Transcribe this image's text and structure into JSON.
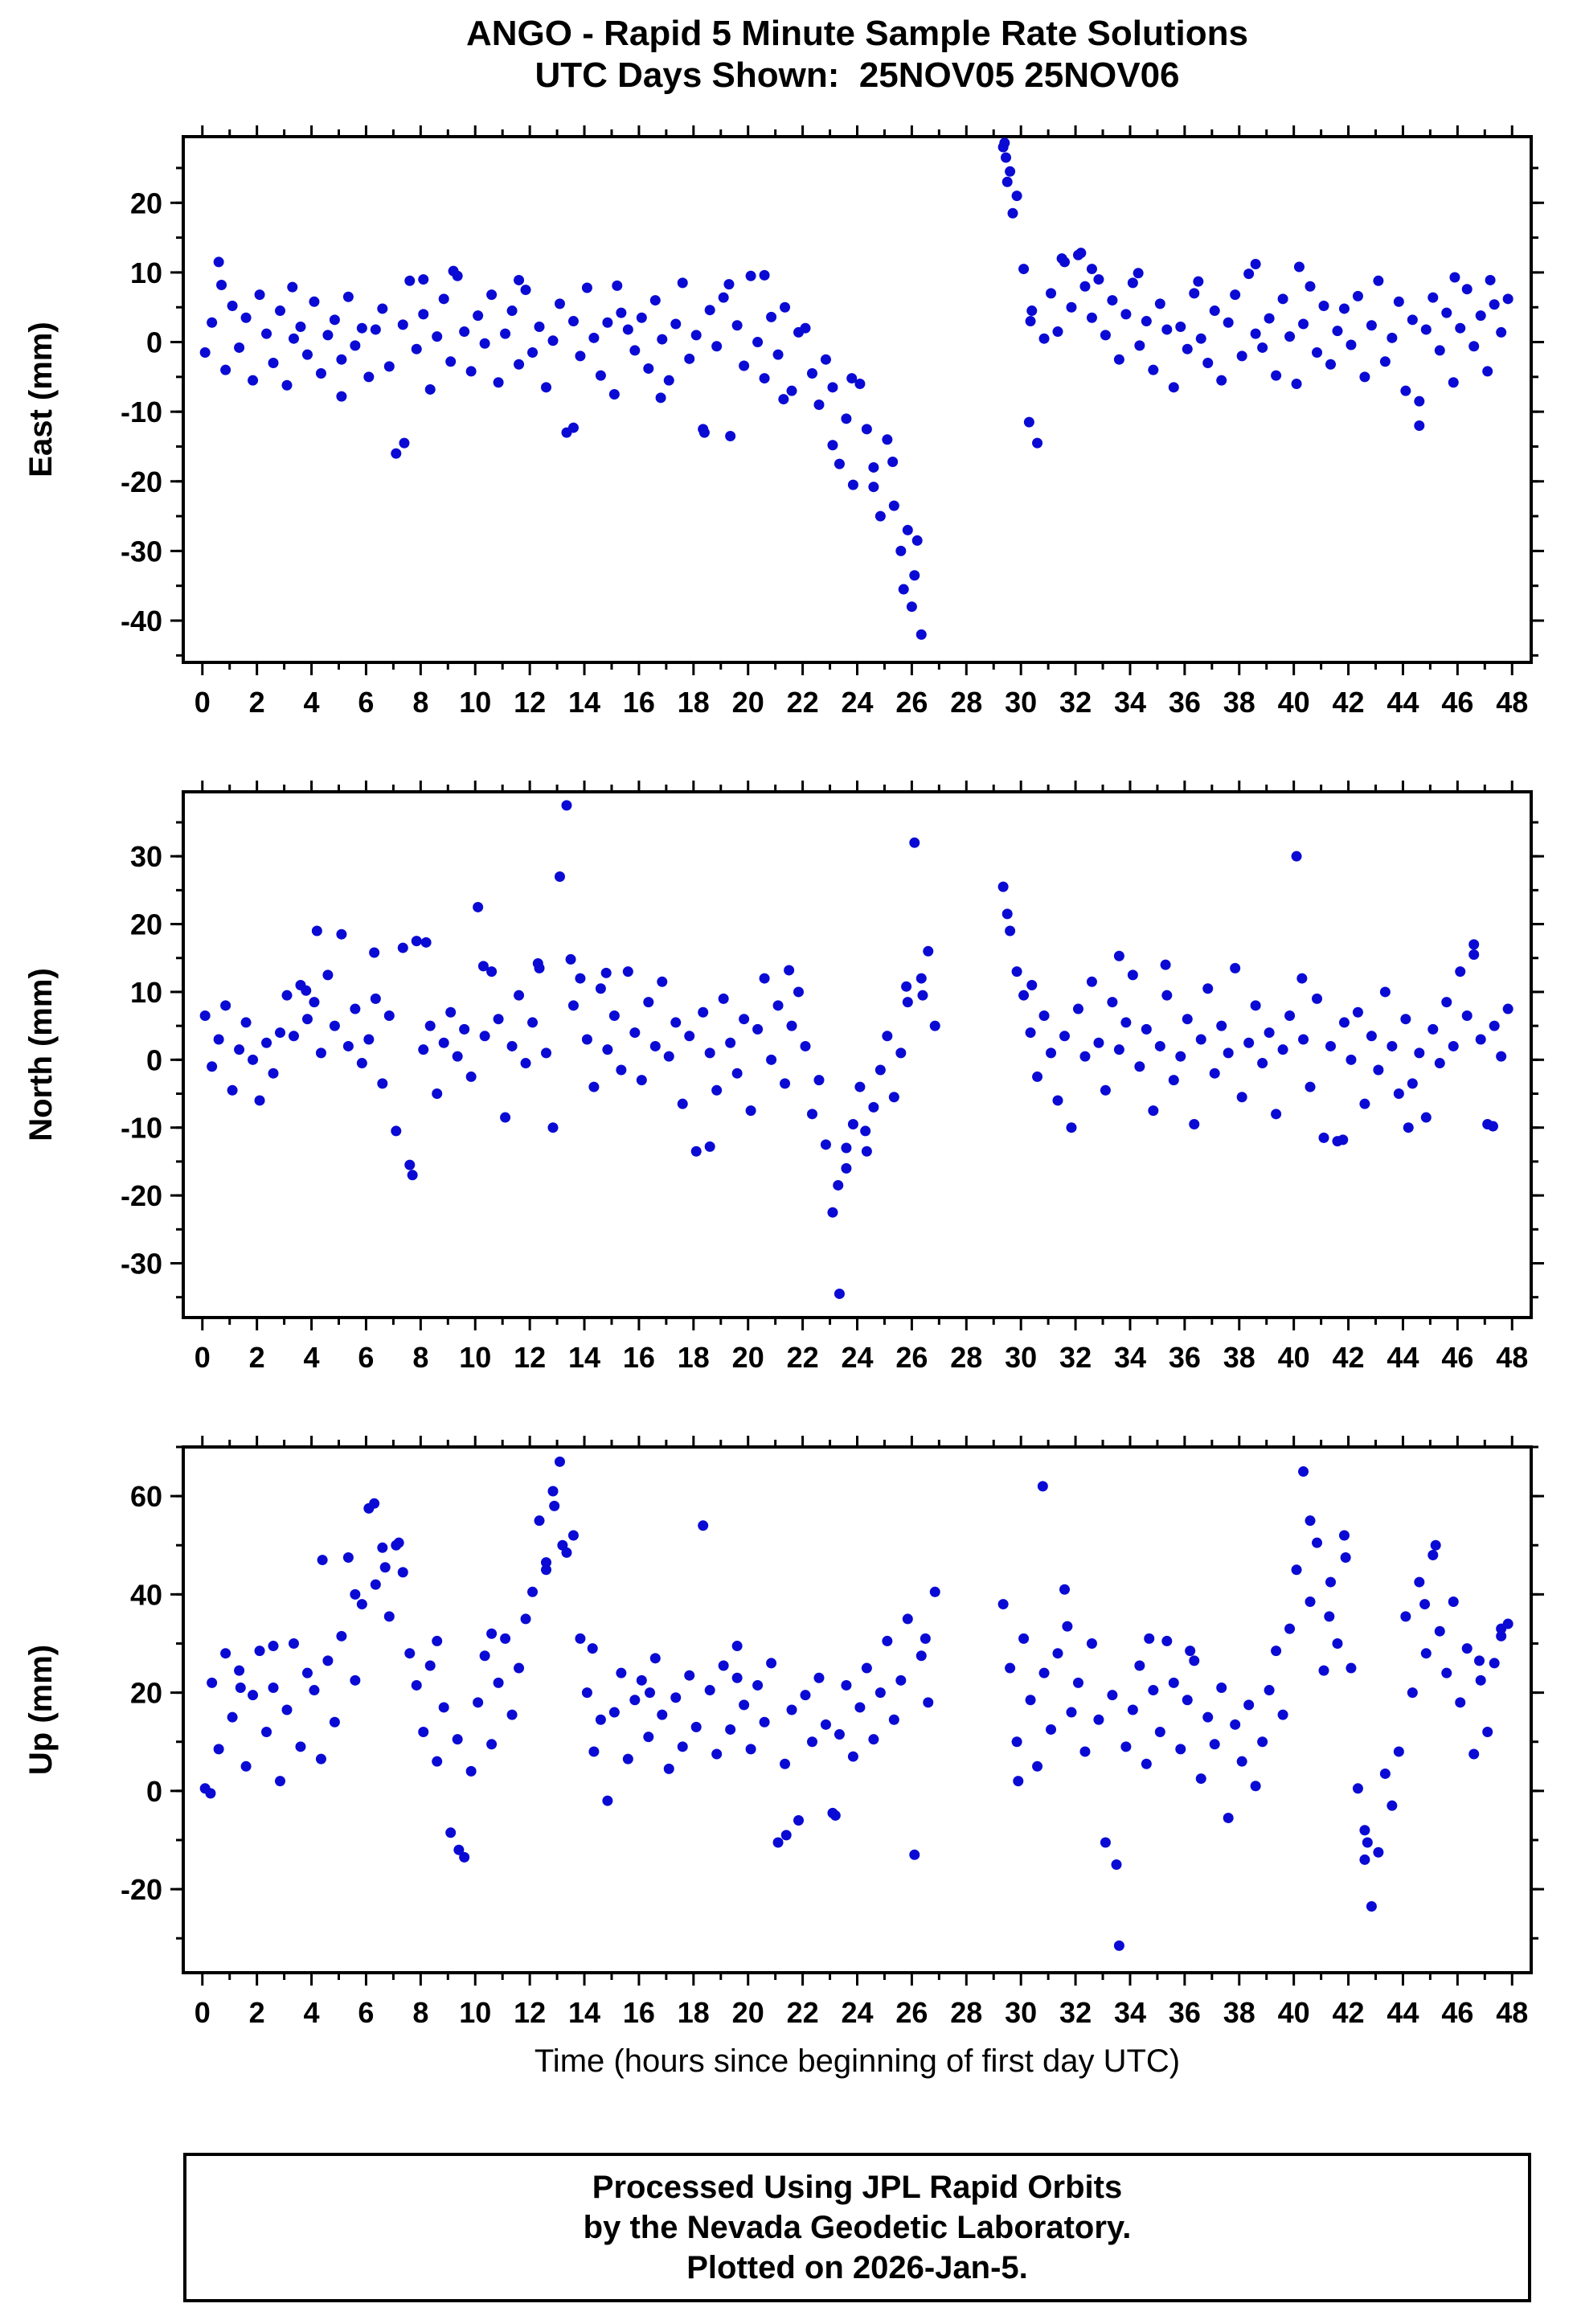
{
  "title": {
    "line1": "ANGO - Rapid 5 Minute Sample Rate Solutions",
    "line2": "UTC Days Shown:  25NOV05 25NOV06"
  },
  "footer": {
    "line1": "Processed Using JPL Rapid Orbits",
    "line2": "by the Nevada Geodetic Laboratory.",
    "line3": "Plotted on 2026-Jan-5."
  },
  "style": {
    "point_color": "#0a0ad4",
    "frame_color": "#000000",
    "background": "#ffffff"
  },
  "chart_data": [
    {
      "type": "scatter",
      "ylabel": "East (mm)",
      "xlim": [
        -0.7,
        48.7
      ],
      "ylim": [
        -46,
        29.5
      ],
      "yticks": [
        -40,
        -30,
        -20,
        -10,
        0,
        10,
        20
      ],
      "ytick_minor": 5,
      "xticks": {
        "min": 0,
        "max": 48,
        "major": 2,
        "minor": 1
      },
      "grid": false,
      "series": [
        {
          "x0": 0.1,
          "dx": 0.25,
          "y": [
            -1.5,
            2.8,
            11.5,
            -4.0,
            5.2,
            -0.8,
            3.5,
            -5.5,
            6.8,
            1.2,
            -3.0,
            4.5,
            -6.2,
            0.5,
            2.2,
            -1.8,
            5.8,
            -4.5,
            1.0,
            3.2,
            -2.5,
            6.5,
            -0.5,
            2.0,
            -5.0,
            1.8,
            4.8,
            -3.5,
            -16.0,
            2.5,
            8.8,
            -1.0,
            4.0,
            -6.8,
            0.8,
            6.2,
            -2.8,
            9.5,
            1.5,
            -4.2,
            3.8,
            -0.2,
            6.8,
            -5.8,
            1.2,
            4.5,
            -3.2,
            7.5,
            -1.5,
            2.2,
            -6.5,
            0.2,
            5.5,
            -13.0,
            3.0,
            -2.0,
            7.8,
            0.6,
            -4.8,
            2.8,
            -7.5,
            4.2,
            1.8,
            -1.2,
            3.5,
            -3.8,
            6.0,
            0.4,
            -5.5,
            2.6,
            8.5,
            -2.4,
            1.0,
            -12.5,
            4.6,
            -0.6,
            6.4,
            -13.5,
            2.4,
            -3.4,
            9.5,
            0.0,
            -5.2,
            3.6,
            -1.8,
            5.0,
            -7.0,
            1.4,
            2.0,
            -4.5,
            -9.0,
            -2.5,
            -6.5,
            -17.5,
            -11.0,
            -20.5,
            -6.0,
            -12.5,
            -18.0,
            -25.0,
            -14.0,
            -23.5,
            -30.0,
            -27.0,
            -33.5,
            -42.0,
            null,
            null,
            null,
            null,
            null,
            null,
            null,
            null,
            null,
            null,
            null,
            28.0,
            24.5,
            21.0,
            10.5,
            3.0,
            -14.5,
            0.5,
            7.0,
            1.5,
            11.5,
            5.0,
            12.5,
            8.0,
            3.5,
            9.0,
            1.0,
            6.0,
            -2.5,
            4.0,
            8.5,
            -0.5,
            3.0,
            -4.0,
            5.5,
            1.8,
            -6.5,
            2.2,
            -1.0,
            7.0,
            0.5,
            -3.0,
            4.5,
            -5.5,
            2.8,
            6.8,
            -2.0,
            9.8,
            1.2,
            -0.8,
            3.4,
            -4.8,
            6.2,
            0.8,
            -6.0,
            2.6,
            8.0,
            -1.5,
            5.2,
            -3.2,
            1.6,
            4.8,
            -0.4,
            6.6,
            -5.0,
            2.4,
            8.8,
            -2.8,
            0.6,
            5.8,
            -7.0,
            3.2,
            -12.0,
            1.8,
            6.4,
            -1.2,
            4.2,
            -5.8,
            2.0,
            7.6,
            -0.6,
            3.8,
            -4.2,
            5.4,
            1.4,
            6.2
          ]
        },
        {
          "points": [
            [
              0.7,
              8.2
            ],
            [
              3.3,
              7.9
            ],
            [
              5.1,
              -7.8
            ],
            [
              7.4,
              -14.5
            ],
            [
              8.1,
              9.0
            ],
            [
              9.2,
              10.2
            ],
            [
              11.6,
              8.9
            ],
            [
              13.6,
              -12.3
            ],
            [
              15.2,
              8.1
            ],
            [
              16.8,
              -8.0
            ],
            [
              18.4,
              -13.0
            ],
            [
              19.3,
              8.3
            ],
            [
              20.6,
              9.6
            ],
            [
              21.3,
              -8.2
            ],
            [
              23.1,
              -14.8
            ],
            [
              23.8,
              -5.2
            ],
            [
              24.6,
              -20.8
            ],
            [
              25.3,
              -17.2
            ],
            [
              25.7,
              -35.5
            ],
            [
              26.0,
              -38.0
            ],
            [
              26.2,
              -28.5
            ],
            [
              29.4,
              28.6
            ],
            [
              29.45,
              26.5
            ],
            [
              29.5,
              23.0
            ],
            [
              29.7,
              18.5
            ],
            [
              30.3,
              -11.5
            ],
            [
              30.4,
              4.5
            ],
            [
              31.5,
              12.0
            ],
            [
              32.2,
              12.8
            ],
            [
              32.6,
              10.5
            ],
            [
              34.3,
              9.9
            ],
            [
              36.5,
              8.7
            ],
            [
              38.6,
              11.2
            ],
            [
              40.2,
              10.8
            ],
            [
              44.6,
              -8.5
            ],
            [
              45.9,
              9.3
            ],
            [
              47.2,
              8.9
            ]
          ]
        }
      ]
    },
    {
      "type": "scatter",
      "ylabel": "North (mm)",
      "xlim": [
        -0.7,
        48.7
      ],
      "ylim": [
        -38,
        39.5
      ],
      "yticks": [
        -30,
        -20,
        -10,
        0,
        10,
        20,
        30
      ],
      "ytick_minor": 5,
      "xticks": {
        "min": 0,
        "max": 48,
        "major": 2,
        "minor": 1
      },
      "grid": false,
      "series": [
        {
          "x0": 0.1,
          "dx": 0.25,
          "y": [
            6.5,
            -1.0,
            3.0,
            8.0,
            -4.5,
            1.5,
            5.5,
            0.0,
            -6.0,
            2.5,
            -2.0,
            4.0,
            9.5,
            3.5,
            11.0,
            6.0,
            8.5,
            1.0,
            12.5,
            5.0,
            18.5,
            2.0,
            7.5,
            -0.5,
            3.0,
            9.0,
            -3.5,
            6.5,
            -10.5,
            16.5,
            -15.5,
            17.5,
            1.5,
            5.0,
            -5.0,
            2.5,
            7.0,
            0.5,
            4.5,
            -2.5,
            22.5,
            3.5,
            13.0,
            6.0,
            -8.5,
            2.0,
            9.5,
            -0.5,
            5.5,
            13.5,
            1.0,
            -10.0,
            27.0,
            37.5,
            8.0,
            12.0,
            3.0,
            -4.0,
            10.5,
            1.5,
            6.5,
            -1.5,
            13.0,
            4.0,
            -3.0,
            8.5,
            2.0,
            11.5,
            0.5,
            5.5,
            -6.5,
            3.5,
            -13.5,
            7.0,
            1.0,
            -4.5,
            9.0,
            2.5,
            -2.0,
            6.0,
            -7.5,
            4.5,
            12.0,
            0.0,
            8.0,
            -3.5,
            5.0,
            10.0,
            2.0,
            -8.0,
            -3.0,
            -12.5,
            -22.5,
            -34.5,
            -16.0,
            -9.5,
            -4.0,
            -13.5,
            -7.0,
            -1.5,
            3.5,
            -5.5,
            1.0,
            8.5,
            32.0,
            12.0,
            16.0,
            5.0,
            null,
            null,
            null,
            null,
            null,
            null,
            null,
            null,
            null,
            25.5,
            19.0,
            13.0,
            9.5,
            4.0,
            -2.5,
            6.5,
            1.0,
            -6.0,
            3.5,
            -10.0,
            7.5,
            0.5,
            11.5,
            2.5,
            -4.5,
            8.5,
            1.5,
            5.5,
            12.5,
            -1.0,
            4.5,
            -7.5,
            2.0,
            9.5,
            -3.0,
            0.5,
            6.0,
            -9.5,
            3.0,
            10.5,
            -2.0,
            5.0,
            1.0,
            13.5,
            -5.5,
            2.5,
            8.0,
            -0.5,
            4.0,
            -8.0,
            1.5,
            6.5,
            30.0,
            3.0,
            -4.0,
            9.0,
            -11.5,
            2.0,
            -12.0,
            5.5,
            0.0,
            7.0,
            -6.5,
            3.5,
            -1.5,
            10.0,
            2.0,
            -5.0,
            6.0,
            -3.5,
            1.0,
            -8.5,
            4.5,
            -0.5,
            8.5,
            2.0,
            13.0,
            6.5,
            17.0,
            3.0,
            -9.5,
            5.0,
            0.5,
            7.5
          ]
        },
        {
          "points": [
            [
              3.8,
              10.2
            ],
            [
              4.2,
              19.0
            ],
            [
              6.3,
              15.8
            ],
            [
              7.7,
              -17.0
            ],
            [
              8.2,
              17.3
            ],
            [
              10.3,
              13.8
            ],
            [
              12.3,
              14.2
            ],
            [
              13.5,
              14.8
            ],
            [
              14.8,
              12.8
            ],
            [
              18.6,
              -12.8
            ],
            [
              21.5,
              13.2
            ],
            [
              23.3,
              -18.5
            ],
            [
              23.6,
              -13.0
            ],
            [
              24.3,
              -10.5
            ],
            [
              25.8,
              10.8
            ],
            [
              26.4,
              9.5
            ],
            [
              29.5,
              21.5
            ],
            [
              30.4,
              11.0
            ],
            [
              33.6,
              15.3
            ],
            [
              35.3,
              14.0
            ],
            [
              40.3,
              12.0
            ],
            [
              41.8,
              -11.8
            ],
            [
              44.2,
              -10.0
            ],
            [
              46.6,
              15.5
            ],
            [
              47.3,
              -9.8
            ]
          ]
        }
      ]
    },
    {
      "type": "scatter",
      "ylabel": "Up (mm)",
      "xlabel": "Time (hours since beginning of first day UTC)",
      "xlim": [
        -0.7,
        48.7
      ],
      "ylim": [
        -37,
        70
      ],
      "yticks": [
        -20,
        0,
        20,
        40,
        60
      ],
      "ytick_minor": 10,
      "xticks": {
        "min": 0,
        "max": 48,
        "major": 2,
        "minor": 1
      },
      "grid": false,
      "series": [
        {
          "x0": 0.1,
          "dx": 0.25,
          "y": [
            0.5,
            22.0,
            8.5,
            28.0,
            15.0,
            24.5,
            5.0,
            19.5,
            28.5,
            12.0,
            21.0,
            2.0,
            16.5,
            30.0,
            9.0,
            24.0,
            20.5,
            6.5,
            26.5,
            14.0,
            31.5,
            47.5,
            22.5,
            38.0,
            57.5,
            42.0,
            49.5,
            35.5,
            50.0,
            44.5,
            28.0,
            21.5,
            12.0,
            25.5,
            6.0,
            17.0,
            -8.5,
            10.5,
            -13.5,
            4.0,
            18.0,
            27.5,
            9.5,
            22.0,
            31.0,
            15.5,
            25.0,
            35.0,
            40.5,
            55.0,
            45.0,
            61.0,
            67.0,
            48.5,
            52.0,
            31.0,
            20.0,
            8.0,
            14.5,
            -2.0,
            16.0,
            24.0,
            6.5,
            18.5,
            22.5,
            11.0,
            27.0,
            15.5,
            4.5,
            19.0,
            9.0,
            23.5,
            13.0,
            54.0,
            20.5,
            7.5,
            25.5,
            12.5,
            29.5,
            17.5,
            8.5,
            21.5,
            14.0,
            26.0,
            -10.5,
            5.5,
            16.5,
            -6.0,
            19.5,
            10.0,
            23.0,
            13.5,
            -4.5,
            11.5,
            21.5,
            7.0,
            17.0,
            25.0,
            10.5,
            20.0,
            30.5,
            14.5,
            22.5,
            35.0,
            -13.0,
            27.5,
            18.0,
            40.5,
            null,
            null,
            null,
            null,
            null,
            null,
            null,
            null,
            null,
            38.0,
            25.0,
            10.0,
            31.0,
            18.5,
            5.0,
            24.0,
            12.5,
            28.0,
            41.0,
            16.0,
            22.0,
            8.0,
            30.0,
            14.5,
            -10.5,
            19.5,
            -31.5,
            9.0,
            16.5,
            25.5,
            5.5,
            20.5,
            12.0,
            30.5,
            22.0,
            8.5,
            18.5,
            26.5,
            2.5,
            15.0,
            9.5,
            21.0,
            -5.5,
            13.5,
            6.0,
            17.5,
            1.0,
            10.0,
            20.5,
            28.5,
            15.5,
            33.0,
            45.0,
            65.0,
            38.5,
            50.5,
            24.5,
            42.5,
            30.0,
            52.0,
            25.0,
            0.5,
            -8.0,
            -23.5,
            -12.5,
            3.5,
            -3.0,
            8.0,
            35.5,
            20.0,
            42.5,
            28.0,
            48.0,
            32.5,
            24.0,
            38.5,
            18.0,
            29.0,
            7.5,
            22.5,
            12.0,
            26.0,
            31.5,
            34.0
          ]
        },
        {
          "points": [
            [
              0.3,
              -0.5
            ],
            [
              1.4,
              21.0
            ],
            [
              2.6,
              29.5
            ],
            [
              4.4,
              47.0
            ],
            [
              5.6,
              40.0
            ],
            [
              6.3,
              58.5
            ],
            [
              6.7,
              45.5
            ],
            [
              7.2,
              50.5
            ],
            [
              8.6,
              30.5
            ],
            [
              9.4,
              -12.0
            ],
            [
              10.6,
              32.0
            ],
            [
              12.6,
              46.5
            ],
            [
              12.9,
              58.0
            ],
            [
              13.2,
              50.0
            ],
            [
              14.3,
              29.0
            ],
            [
              16.4,
              20.0
            ],
            [
              19.6,
              23.0
            ],
            [
              21.4,
              -9.0
            ],
            [
              23.2,
              -5.0
            ],
            [
              26.5,
              31.0
            ],
            [
              29.9,
              2.0
            ],
            [
              30.8,
              62.0
            ],
            [
              31.7,
              33.5
            ],
            [
              33.5,
              -15.0
            ],
            [
              34.7,
              31.0
            ],
            [
              36.2,
              28.5
            ],
            [
              40.6,
              55.0
            ],
            [
              41.3,
              35.5
            ],
            [
              41.9,
              47.5
            ],
            [
              42.6,
              -14.0
            ],
            [
              42.7,
              -10.5
            ],
            [
              44.8,
              38.0
            ],
            [
              45.2,
              50.0
            ],
            [
              46.8,
              26.5
            ],
            [
              47.6,
              33.0
            ]
          ]
        }
      ]
    }
  ]
}
